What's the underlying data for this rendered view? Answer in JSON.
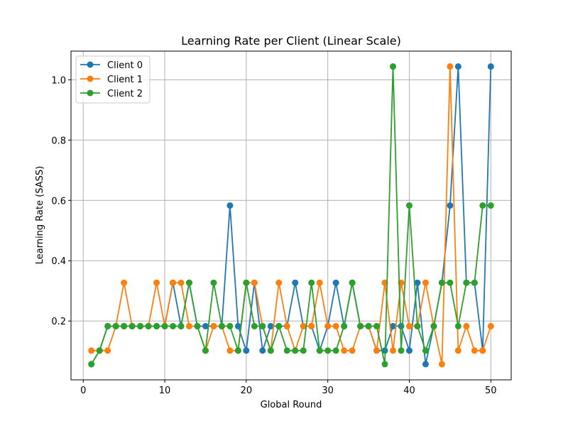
{
  "chart_data": {
    "type": "line",
    "title": "Learning Rate per Client (Linear Scale)",
    "xlabel": "Global Round",
    "ylabel": "Learning Rate (SASS)",
    "xlim": [
      -1.5,
      52.5
    ],
    "ylim": [
      0.005,
      1.095
    ],
    "xticks": [
      0,
      10,
      20,
      30,
      40,
      50
    ],
    "yticks": [
      0.2,
      0.4,
      0.6,
      0.8,
      1.0
    ],
    "xtick_labels": [
      "0",
      "10",
      "20",
      "30",
      "40",
      "50"
    ],
    "ytick_labels": [
      "0.2",
      "0.4",
      "0.6",
      "0.8",
      "1.0"
    ],
    "grid": true,
    "legend_position": "top-left",
    "x": [
      1,
      2,
      3,
      4,
      5,
      6,
      7,
      8,
      9,
      10,
      11,
      12,
      13,
      14,
      15,
      16,
      17,
      18,
      19,
      20,
      21,
      22,
      23,
      24,
      25,
      26,
      27,
      28,
      29,
      30,
      31,
      32,
      33,
      34,
      35,
      36,
      37,
      38,
      39,
      40,
      41,
      42,
      43,
      44,
      45,
      46,
      47,
      48,
      49,
      50
    ],
    "series": [
      {
        "name": "Client 0",
        "color": "#1f77b4",
        "values": [
          0.057,
          0.102,
          0.183,
          0.183,
          0.183,
          0.183,
          0.183,
          0.183,
          0.183,
          0.183,
          0.327,
          0.183,
          0.327,
          0.183,
          0.183,
          0.183,
          0.183,
          0.583,
          0.183,
          0.102,
          0.327,
          0.102,
          0.183,
          0.183,
          0.183,
          0.327,
          0.183,
          0.183,
          0.102,
          0.183,
          0.327,
          0.183,
          0.327,
          0.183,
          0.183,
          0.102,
          0.102,
          0.183,
          0.183,
          0.102,
          0.327,
          0.057,
          0.183,
          0.327,
          0.583,
          1.044,
          0.327,
          0.327,
          0.102,
          1.044
        ]
      },
      {
        "name": "Client 1",
        "color": "#ff7f0e",
        "values": [
          0.102,
          0.102,
          0.102,
          0.183,
          0.327,
          0.183,
          0.183,
          0.183,
          0.327,
          0.183,
          0.327,
          0.327,
          0.183,
          0.183,
          0.102,
          0.183,
          0.183,
          0.102,
          0.102,
          0.327,
          0.327,
          0.183,
          0.102,
          0.327,
          0.183,
          0.102,
          0.183,
          0.183,
          0.327,
          0.183,
          0.183,
          0.102,
          0.102,
          0.183,
          0.183,
          0.102,
          0.327,
          0.102,
          0.327,
          0.183,
          0.183,
          0.327,
          0.183,
          0.057,
          1.044,
          0.102,
          0.183,
          0.102,
          0.102,
          0.183
        ]
      },
      {
        "name": "Client 2",
        "color": "#2ca02c",
        "values": [
          0.057,
          0.102,
          0.183,
          0.183,
          0.183,
          0.183,
          0.183,
          0.183,
          0.183,
          0.183,
          0.183,
          0.183,
          0.327,
          0.183,
          0.102,
          0.327,
          0.183,
          0.183,
          0.102,
          0.327,
          0.183,
          0.183,
          0.102,
          0.183,
          0.102,
          0.102,
          0.102,
          0.327,
          0.102,
          0.102,
          0.102,
          0.183,
          0.327,
          0.183,
          0.183,
          0.183,
          0.057,
          1.044,
          0.102,
          0.583,
          0.183,
          0.102,
          0.183,
          0.327,
          0.327,
          0.183,
          0.327,
          0.327,
          0.583,
          0.583
        ]
      }
    ]
  }
}
